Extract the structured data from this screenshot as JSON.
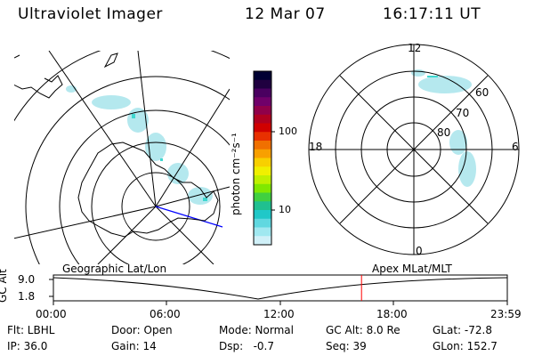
{
  "header": {
    "instrument": "Ultraviolet Imager",
    "date": "12 Mar 07",
    "time": "16:17:11 UT"
  },
  "colorbar": {
    "unit_label": "photon cm⁻²s⁻¹",
    "ticks": [
      "100",
      "10"
    ],
    "colors": [
      "#000033",
      "#200040",
      "#4a0060",
      "#70006a",
      "#90004a",
      "#b00020",
      "#d00000",
      "#e83000",
      "#f07000",
      "#f8a000",
      "#f8d000",
      "#f0f000",
      "#c0f000",
      "#80e800",
      "#40d040",
      "#20c090",
      "#20c8c8",
      "#60d8e0",
      "#a0e8f0",
      "#d0f0f8"
    ]
  },
  "polar": {
    "lat_labels": [
      "60",
      "70",
      "80"
    ],
    "mlt_labels": {
      "top": "12",
      "left": "18",
      "right": "6",
      "bottom": "0"
    }
  },
  "timeline": {
    "left_label": "Geographic Lat/Lon",
    "right_label": "Apex MLat/MLT",
    "axis_name": "GC Alt",
    "y_ticks": [
      "9.0",
      "1.8"
    ],
    "x_ticks": [
      "00:00",
      "06:00",
      "12:00",
      "18:00",
      "23:59"
    ],
    "marker_time_hours": 16.29,
    "marker_color": "#ff0000"
  },
  "footer": {
    "filter": "Flt: LBHL",
    "door": "Door: Open",
    "mode": "Mode: Normal",
    "gc_alt": "GC Alt: 8.0 Re",
    "glat": "GLat: -72.8",
    "ip": "IP: 36.0",
    "gain": "Gain: 14",
    "dsp": "Dsp:   -0.7",
    "seq": "Seq: 39",
    "glon": "GLon: 152.7"
  }
}
